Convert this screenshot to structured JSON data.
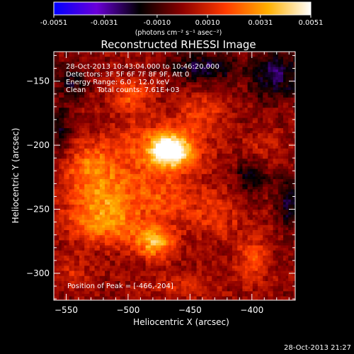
{
  "colorbar": {
    "min": -0.0051,
    "max": 0.0051,
    "tick_labels": [
      "-0.0051",
      "-0.0031",
      "-0.0010",
      "0.0010",
      "0.0031",
      "0.0051"
    ],
    "tick_values": [
      -0.0051,
      -0.0031,
      -0.001,
      0.001,
      0.0031,
      0.0051
    ],
    "unit_label": "(photons cm⁻² s⁻¹ asec⁻²)",
    "colors": [
      "#0000ff",
      "#6a00d8",
      "#000000",
      "#8c0000",
      "#ff3a00",
      "#ffb000",
      "#ffffff"
    ]
  },
  "chart_data": {
    "type": "heatmap",
    "title": "Reconstructed RHESSI Image",
    "xlabel": "Heliocentric X (arcsec)",
    "ylabel": "Heliocentric Y (arcsec)",
    "xlim": [
      -560,
      -365
    ],
    "ylim": [
      -321,
      -127
    ],
    "x_ticks": [
      -550,
      -500,
      -450,
      -400
    ],
    "x_tick_labels": [
      "−550",
      "−500",
      "−450",
      "−400"
    ],
    "y_ticks": [
      -150,
      -200,
      -250,
      -300
    ],
    "y_tick_labels": [
      "−150",
      "−200",
      "−250",
      "−300"
    ],
    "grid": false,
    "annotations": [
      "28-Oct-2013 10:43:04.000 to 10:46:20.000",
      "Detectors: 3F 5F 6F 7F 8F 9F, Att 0",
      "Energy Range: 6.0 - 12.0 keV",
      "Clean     Total counts: 7.61E+03"
    ],
    "peak_label": "Position of Peak = [-466,-204]",
    "peak": {
      "x": -466,
      "y": -204,
      "value": 0.0051
    },
    "sources": [
      {
        "x": -466,
        "y": -204,
        "sx": 12,
        "sy": 9,
        "amp": 0.0051
      },
      {
        "x": -480,
        "y": -207,
        "sx": 30,
        "sy": 22,
        "amp": 0.0017
      },
      {
        "x": -532,
        "y": -215,
        "sx": 16,
        "sy": 12,
        "amp": 0.002
      },
      {
        "x": -520,
        "y": -240,
        "sx": 20,
        "sy": 13,
        "amp": 0.0024
      },
      {
        "x": -530,
        "y": -262,
        "sx": 18,
        "sy": 11,
        "amp": 0.0016
      },
      {
        "x": -478,
        "y": -276,
        "sx": 11,
        "sy": 9,
        "amp": 0.0034
      },
      {
        "x": -505,
        "y": -265,
        "sx": 15,
        "sy": 11,
        "amp": 0.0016
      },
      {
        "x": -498,
        "y": -160,
        "sx": 11,
        "sy": 9,
        "amp": 0.0017
      },
      {
        "x": -470,
        "y": -245,
        "sx": 16,
        "sy": 10,
        "amp": 0.0015
      },
      {
        "x": -440,
        "y": -176,
        "sx": 13,
        "sy": 11,
        "amp": 0.0013
      },
      {
        "x": -430,
        "y": -255,
        "sx": 16,
        "sy": 14,
        "amp": 0.0013
      },
      {
        "x": -400,
        "y": -290,
        "sx": 10,
        "sy": 14,
        "amp": 0.0016
      },
      {
        "x": -545,
        "y": -300,
        "sx": 12,
        "sy": 9,
        "amp": 0.001
      },
      {
        "x": -455,
        "y": -310,
        "sx": 18,
        "sy": 7,
        "amp": 0.0011
      },
      {
        "x": -390,
        "y": -200,
        "sx": 10,
        "sy": 10,
        "amp": 0.0009
      },
      {
        "x": -440,
        "y": -140,
        "sx": 18,
        "sy": 8,
        "amp": -0.0022
      },
      {
        "x": -380,
        "y": -145,
        "sx": 16,
        "sy": 14,
        "amp": -0.0022
      },
      {
        "x": -400,
        "y": -225,
        "sx": 9,
        "sy": 9,
        "amp": -0.002
      },
      {
        "x": -370,
        "y": -245,
        "sx": 7,
        "sy": 14,
        "amp": -0.002
      },
      {
        "x": -555,
        "y": -190,
        "sx": 7,
        "sy": 16,
        "amp": -0.0016
      },
      {
        "x": -545,
        "y": -150,
        "sx": 9,
        "sy": 10,
        "amp": -0.0014
      }
    ]
  },
  "footer": {
    "timestamp": "28-Oct-2013 21:27"
  }
}
